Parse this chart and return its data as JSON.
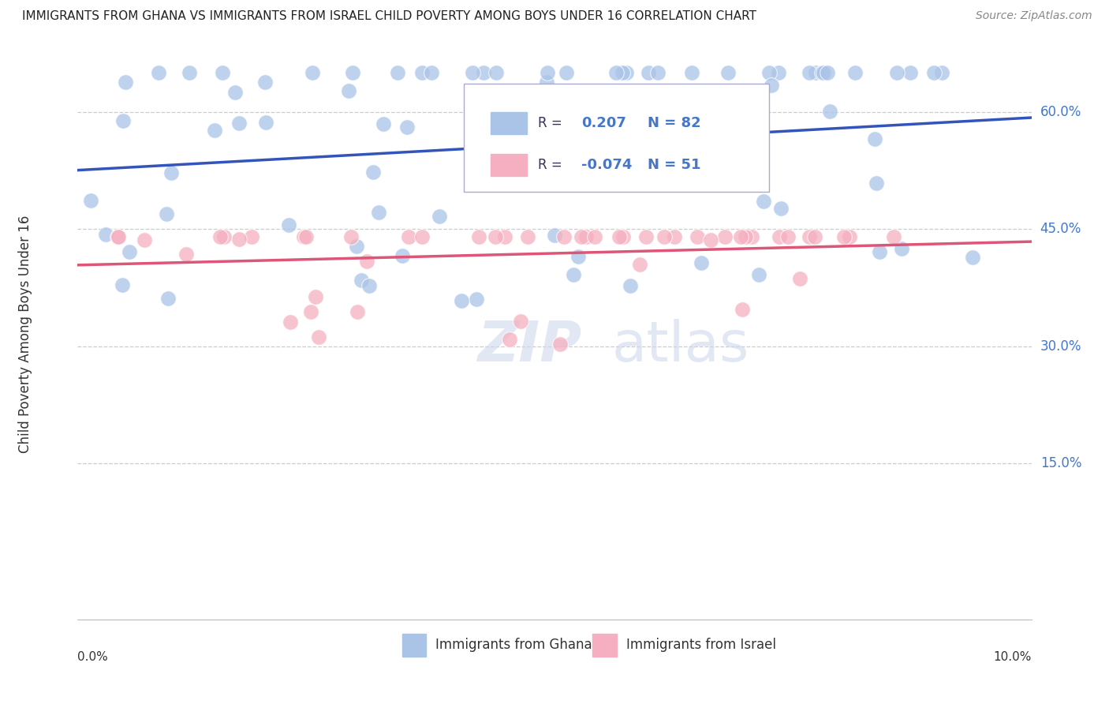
{
  "title": "IMMIGRANTS FROM GHANA VS IMMIGRANTS FROM ISRAEL CHILD POVERTY AMONG BOYS UNDER 16 CORRELATION CHART",
  "source": "Source: ZipAtlas.com",
  "ylabel": "Child Poverty Among Boys Under 16",
  "watermark": "ZIPatlas",
  "ghana_R": 0.207,
  "ghana_N": 82,
  "israel_R": -0.074,
  "israel_N": 51,
  "ghana_color": "#aac4e8",
  "israel_color": "#f5afc0",
  "ghana_line_color": "#3355bb",
  "israel_line_color": "#dd5577",
  "ytick_labels": [
    "15.0%",
    "30.0%",
    "45.0%",
    "60.0%"
  ],
  "ytick_values": [
    0.15,
    0.3,
    0.45,
    0.6
  ],
  "x_range": [
    0.0,
    0.1
  ],
  "y_range": [
    -0.05,
    0.68
  ],
  "ghana_seed": 10,
  "israel_seed": 20,
  "bottom_label1": "Immigrants from Ghana",
  "bottom_label2": "Immigrants from Israel",
  "title_color": "#222222",
  "source_color": "#888888",
  "ylabel_color": "#333333",
  "tick_label_color": "#4477cc",
  "bottom_label_color": "#333333",
  "grid_color": "#cccccc",
  "legend_edge_color": "#aaaacc"
}
